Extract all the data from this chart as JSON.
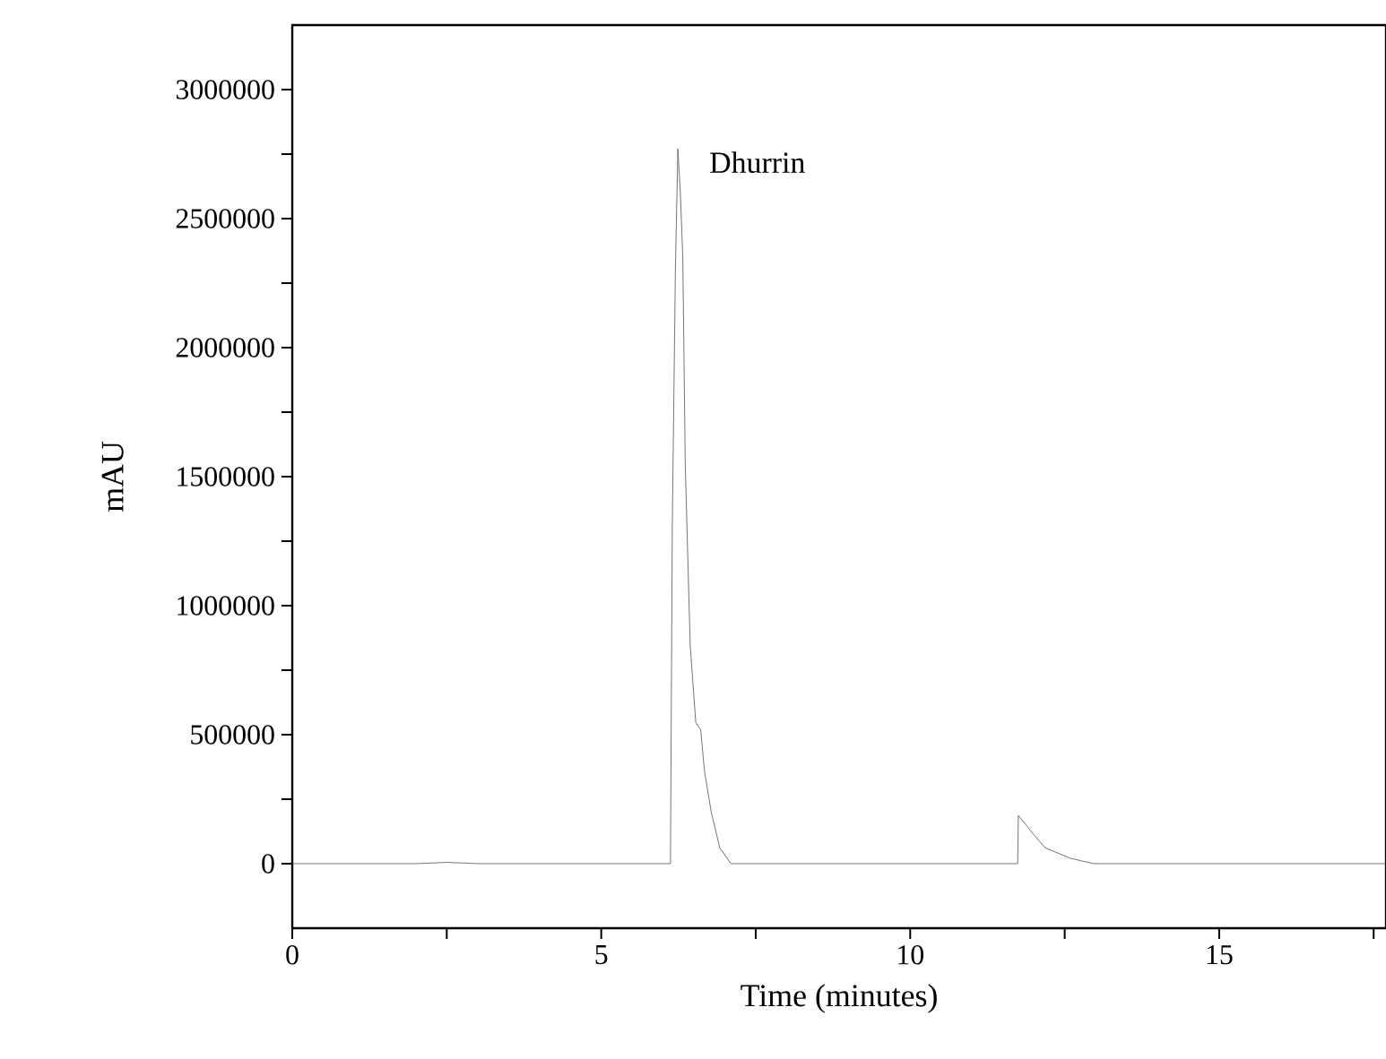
{
  "chart_data": {
    "type": "line",
    "xlabel": "Time (minutes)",
    "ylabel": "mAU",
    "color": "#505050",
    "marker": "none",
    "x": [
      0,
      1,
      2,
      2.5,
      3,
      4,
      5,
      6,
      6.1,
      6.12,
      6.15,
      6.2,
      6.24,
      6.28,
      6.32,
      6.36,
      6.44,
      6.53,
      6.61,
      6.67,
      6.78,
      6.92,
      7.1,
      8,
      9,
      10,
      11,
      11.74,
      11.75,
      11.98,
      12.18,
      12.59,
      12.97,
      14,
      16,
      17.7
    ],
    "values": [
      0,
      0,
      0,
      5000,
      0,
      0,
      0,
      0,
      0,
      0,
      1310000,
      2300000,
      2770000,
      2600000,
      2350000,
      1540000,
      845000,
      547000,
      519000,
      360000,
      200000,
      60000,
      0,
      0,
      0,
      0,
      0,
      0,
      187000,
      118000,
      62000,
      21000,
      0,
      0,
      0,
      0
    ],
    "xlim": [
      0,
      17.7
    ],
    "ylim": [
      -250000,
      3250000
    ],
    "xticks": [
      0,
      {
        "value": 2.5,
        "label": null
      },
      5,
      {
        "value": 7.5,
        "label": null
      },
      10,
      {
        "value": 12.5,
        "label": null
      },
      15,
      {
        "value": 17.5,
        "label": null
      }
    ],
    "yticks": [
      0,
      {
        "value": 250000,
        "label": null
      },
      500000,
      {
        "value": 750000,
        "label": null
      },
      1000000,
      {
        "value": 1250000,
        "label": null
      },
      1500000,
      {
        "value": 1750000,
        "label": null
      },
      2000000,
      {
        "value": 2250000,
        "label": null
      },
      2500000,
      {
        "value": 2750000,
        "label": null
      },
      3000000
    ],
    "annotations": [
      {
        "text": "Dhurrin",
        "x": 6.24,
        "y": 2770000
      }
    ]
  }
}
